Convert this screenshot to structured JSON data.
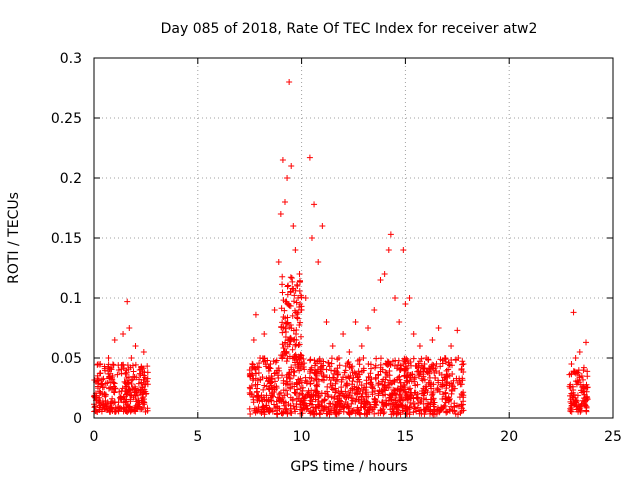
{
  "chart_data": {
    "type": "scatter",
    "title": "Day 085 of 2018, Rate Of TEC Index for receiver atw2",
    "xlabel": "GPS time / hours",
    "ylabel": "ROTI / TECUs",
    "xlim": [
      0,
      25
    ],
    "ylim": [
      0,
      0.3
    ],
    "x_ticks": [
      0,
      5,
      10,
      15,
      20,
      25
    ],
    "x_tick_labels": [
      "0",
      "5",
      "10",
      "15",
      "20",
      "25"
    ],
    "y_ticks": [
      0,
      0.05,
      0.1,
      0.15,
      0.2,
      0.25,
      0.3
    ],
    "y_tick_labels": [
      "0",
      "0.05",
      "0.1",
      "0.15",
      "0.2",
      "0.25",
      "0.3"
    ],
    "grid": true,
    "marker": "+",
    "marker_color": "#ff0000",
    "series": [
      {
        "name": "ROTI",
        "points": [
          [
            0.1,
            0.03
          ],
          [
            0.3,
            0.045
          ],
          [
            0.5,
            0.02
          ],
          [
            0.7,
            0.05
          ],
          [
            0.9,
            0.035
          ],
          [
            1.0,
            0.065
          ],
          [
            1.2,
            0.04
          ],
          [
            1.4,
            0.07
          ],
          [
            1.5,
            0.03
          ],
          [
            1.6,
            0.097
          ],
          [
            1.7,
            0.075
          ],
          [
            1.8,
            0.05
          ],
          [
            2.0,
            0.06
          ],
          [
            2.2,
            0.04
          ],
          [
            2.4,
            0.055
          ],
          [
            2.5,
            0.02
          ],
          [
            0.2,
            0.015
          ],
          [
            0.8,
            0.012
          ],
          [
            1.3,
            0.018
          ],
          [
            2.1,
            0.01
          ],
          [
            7.5,
            0.04
          ],
          [
            7.7,
            0.065
          ],
          [
            7.8,
            0.086
          ],
          [
            8.0,
            0.05
          ],
          [
            8.2,
            0.07
          ],
          [
            8.5,
            0.045
          ],
          [
            8.7,
            0.09
          ],
          [
            8.9,
            0.13
          ],
          [
            9.0,
            0.17
          ],
          [
            9.1,
            0.215
          ],
          [
            9.2,
            0.18
          ],
          [
            9.3,
            0.2
          ],
          [
            9.4,
            0.28
          ],
          [
            9.5,
            0.21
          ],
          [
            9.6,
            0.16
          ],
          [
            9.7,
            0.14
          ],
          [
            9.8,
            0.11
          ],
          [
            9.9,
            0.12
          ],
          [
            10.0,
            0.09
          ],
          [
            10.2,
            0.1
          ],
          [
            10.4,
            0.217
          ],
          [
            10.5,
            0.15
          ],
          [
            10.6,
            0.178
          ],
          [
            10.8,
            0.13
          ],
          [
            11.0,
            0.16
          ],
          [
            11.2,
            0.08
          ],
          [
            11.5,
            0.06
          ],
          [
            11.8,
            0.05
          ],
          [
            12.0,
            0.07
          ],
          [
            12.3,
            0.055
          ],
          [
            12.6,
            0.08
          ],
          [
            12.9,
            0.06
          ],
          [
            13.2,
            0.075
          ],
          [
            13.5,
            0.09
          ],
          [
            13.8,
            0.115
          ],
          [
            14.0,
            0.12
          ],
          [
            14.2,
            0.14
          ],
          [
            14.3,
            0.153
          ],
          [
            14.5,
            0.1
          ],
          [
            14.7,
            0.08
          ],
          [
            14.9,
            0.14
          ],
          [
            15.0,
            0.095
          ],
          [
            15.2,
            0.1
          ],
          [
            15.4,
            0.07
          ],
          [
            15.7,
            0.06
          ],
          [
            16.0,
            0.05
          ],
          [
            16.3,
            0.065
          ],
          [
            16.6,
            0.075
          ],
          [
            16.9,
            0.05
          ],
          [
            17.2,
            0.06
          ],
          [
            17.5,
            0.073
          ],
          [
            17.7,
            0.04
          ],
          [
            7.6,
            0.02
          ],
          [
            8.1,
            0.015
          ],
          [
            8.8,
            0.025
          ],
          [
            9.6,
            0.01
          ],
          [
            10.3,
            0.02
          ],
          [
            11.1,
            0.015
          ],
          [
            12.2,
            0.01
          ],
          [
            13.1,
            0.02
          ],
          [
            14.1,
            0.012
          ],
          [
            15.1,
            0.018
          ],
          [
            16.1,
            0.01
          ],
          [
            17.1,
            0.015
          ],
          [
            23.0,
            0.045
          ],
          [
            23.1,
            0.088
          ],
          [
            23.2,
            0.05
          ],
          [
            23.3,
            0.03
          ],
          [
            23.4,
            0.055
          ],
          [
            23.5,
            0.035
          ],
          [
            23.6,
            0.042
          ],
          [
            23.7,
            0.063
          ],
          [
            23.2,
            0.015
          ],
          [
            23.5,
            0.01
          ]
        ],
        "dense_bands": [
          {
            "x_range": [
              0.0,
              2.6
            ],
            "y_range": [
              0.005,
              0.045
            ]
          },
          {
            "x_range": [
              7.5,
              17.8
            ],
            "y_range": [
              0.003,
              0.05
            ]
          },
          {
            "x_range": [
              9.0,
              10.0
            ],
            "y_range": [
              0.05,
              0.12
            ]
          },
          {
            "x_range": [
              22.9,
              23.8
            ],
            "y_range": [
              0.005,
              0.04
            ]
          }
        ]
      }
    ]
  }
}
